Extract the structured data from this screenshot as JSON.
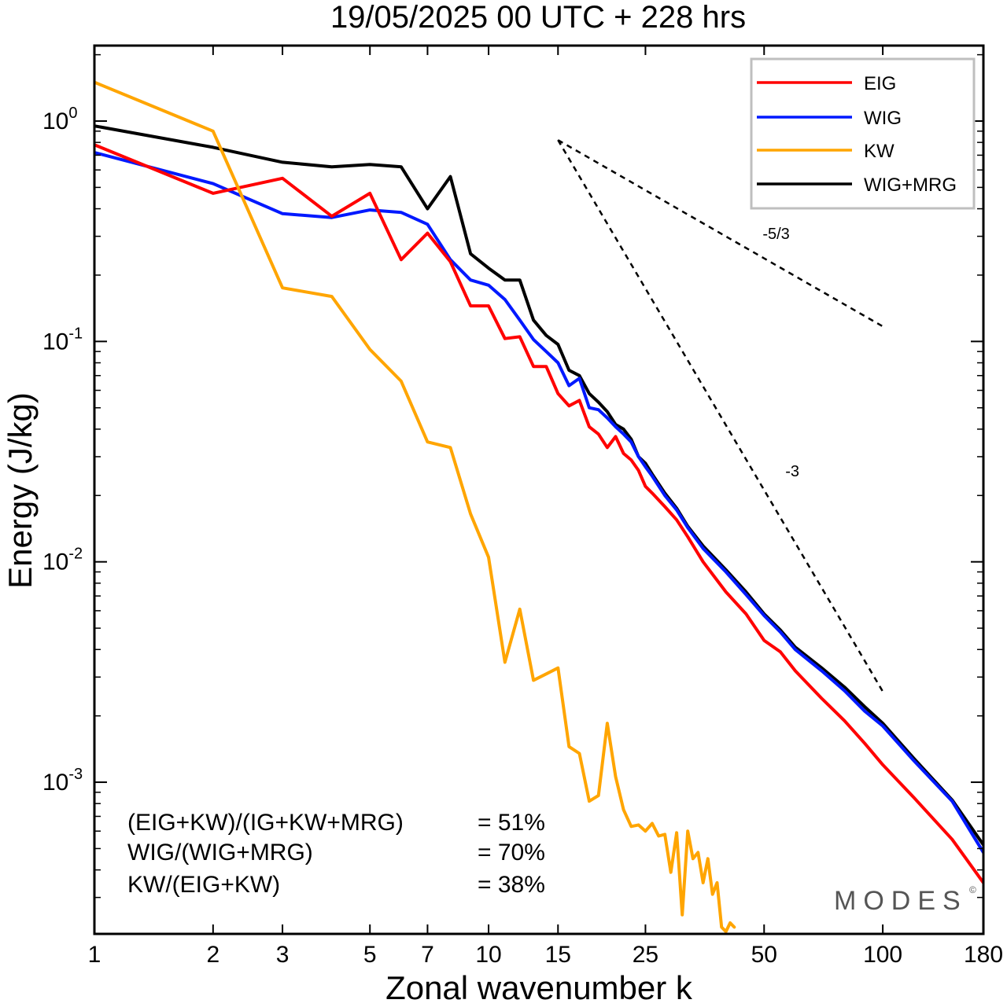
{
  "chart_data": {
    "type": "line",
    "title": "19/05/2025  00 UTC  + 228 hrs",
    "xlabel": "Zonal wavenumber k",
    "ylabel": "Energy (J/kg)",
    "xscale": "log",
    "yscale": "log",
    "xlim": [
      1,
      180
    ],
    "ylim": [
      0.000205,
      2.2
    ],
    "x_ticks": [
      1,
      2,
      3,
      5,
      7,
      10,
      15,
      25,
      50,
      100,
      180
    ],
    "x_tick_labels": [
      "1",
      "2",
      "3",
      "5",
      "7",
      "10",
      "15",
      "25",
      "50",
      "100",
      "180"
    ],
    "y_ticks": [
      {
        "value": 1,
        "base": "10",
        "exp": "0"
      },
      {
        "value": 0.1,
        "base": "10",
        "exp": "-1"
      },
      {
        "value": 0.01,
        "base": "10",
        "exp": "-2"
      },
      {
        "value": 0.001,
        "base": "10",
        "exp": "-3"
      }
    ],
    "grid": false,
    "legend": {
      "position": "top-right",
      "entries": [
        "EIG",
        "WIG",
        "KW",
        "WIG+MRG"
      ]
    },
    "series": [
      {
        "name": "WIG+MRG",
        "color": "#000000",
        "x": [
          1,
          2,
          3,
          4,
          5,
          6,
          7,
          8,
          9,
          10,
          11,
          12,
          13,
          14,
          15,
          16,
          17,
          18,
          19,
          20,
          21,
          22,
          23,
          24,
          25,
          26,
          28,
          30,
          32,
          35,
          40,
          45,
          50,
          55,
          60,
          70,
          80,
          90,
          100,
          120,
          150,
          180
        ],
        "y": [
          0.95,
          0.76,
          0.65,
          0.62,
          0.635,
          0.62,
          0.4,
          0.56,
          0.25,
          0.215,
          0.19,
          0.19,
          0.125,
          0.1065,
          0.097,
          0.074,
          0.07,
          0.058,
          0.053,
          0.048,
          0.042,
          0.04,
          0.036,
          0.03,
          0.028,
          0.025,
          0.0205,
          0.0175,
          0.0145,
          0.0118,
          0.0092,
          0.0073,
          0.0058,
          0.0049,
          0.0041,
          0.0033,
          0.0027,
          0.0022,
          0.00185,
          0.00128,
          0.00083,
          0.00052
        ]
      },
      {
        "name": "WIG",
        "color": "#0019ff",
        "x": [
          1,
          2,
          3,
          4,
          5,
          6,
          7,
          8,
          9,
          10,
          11,
          12,
          13,
          14,
          15,
          16,
          17,
          18,
          19,
          20,
          21,
          22,
          23,
          24,
          25,
          26,
          28,
          30,
          32,
          35,
          40,
          45,
          50,
          55,
          60,
          70,
          80,
          90,
          100,
          120,
          150,
          180
        ],
        "y": [
          0.72,
          0.52,
          0.38,
          0.365,
          0.395,
          0.385,
          0.34,
          0.235,
          0.19,
          0.18,
          0.155,
          0.125,
          0.102,
          0.09,
          0.08,
          0.063,
          0.068,
          0.05,
          0.049,
          0.045,
          0.041,
          0.038,
          0.035,
          0.03,
          0.027,
          0.0245,
          0.02,
          0.0172,
          0.0143,
          0.0115,
          0.009,
          0.0071,
          0.0057,
          0.0048,
          0.004,
          0.0032,
          0.0026,
          0.0021,
          0.0018,
          0.00125,
          0.00082,
          0.00048
        ]
      },
      {
        "name": "EIG",
        "color": "#ff0000",
        "x": [
          1,
          2,
          3,
          4,
          5,
          6,
          7,
          8,
          9,
          10,
          11,
          12,
          13,
          14,
          15,
          16,
          17,
          18,
          19,
          20,
          21,
          22,
          23,
          24,
          25,
          26,
          28,
          30,
          32,
          35,
          40,
          45,
          50,
          55,
          60,
          70,
          80,
          90,
          100,
          120,
          150,
          180
        ],
        "y": [
          0.78,
          0.47,
          0.55,
          0.37,
          0.47,
          0.235,
          0.31,
          0.23,
          0.145,
          0.145,
          0.103,
          0.105,
          0.077,
          0.077,
          0.058,
          0.051,
          0.054,
          0.041,
          0.038,
          0.033,
          0.037,
          0.031,
          0.029,
          0.026,
          0.022,
          0.0205,
          0.0178,
          0.0155,
          0.013,
          0.01,
          0.0073,
          0.0058,
          0.0044,
          0.0039,
          0.0032,
          0.0024,
          0.0019,
          0.0015,
          0.0012,
          0.00085,
          0.00055,
          0.00035
        ]
      },
      {
        "name": "KW",
        "color": "#ffa500",
        "x": [
          1,
          2,
          3,
          4,
          5,
          6,
          7,
          8,
          9,
          10,
          11,
          12,
          13,
          14,
          15,
          16,
          17,
          18,
          19,
          20,
          21,
          22,
          23,
          24,
          25,
          26,
          27,
          28,
          29,
          30,
          31,
          32,
          33,
          34,
          35,
          36,
          37,
          38,
          39,
          40,
          41,
          42
        ],
        "y": [
          1.5,
          0.9,
          0.175,
          0.16,
          0.092,
          0.066,
          0.035,
          0.033,
          0.0165,
          0.0105,
          0.0035,
          0.0061,
          0.0029,
          0.0031,
          0.0033,
          0.00145,
          0.00135,
          0.00082,
          0.00087,
          0.00185,
          0.00106,
          0.00075,
          0.00063,
          0.00064,
          0.0006,
          0.00065,
          0.00057,
          0.00058,
          0.00039,
          0.00059,
          0.00025,
          0.0006,
          0.00045,
          0.00048,
          0.00035,
          0.00045,
          0.00031,
          0.00035,
          0.00022,
          0.00021,
          0.00023,
          0.00022
        ]
      }
    ],
    "reference_lines": [
      {
        "label": "-5/3",
        "slope": -1.6667,
        "x": [
          15,
          100
        ],
        "y": [
          0.82,
          0.117
        ]
      },
      {
        "label": "-3",
        "slope": -3,
        "x": [
          15,
          100
        ],
        "y": [
          0.82,
          0.00258
        ]
      }
    ],
    "annotations": [
      {
        "text": "(EIG+KW)/(IG+KW+MRG)",
        "value": "= 51%"
      },
      {
        "text": "WIG/(WIG+MRG)",
        "value": "= 70%"
      },
      {
        "text": "KW/(EIG+KW)",
        "value": "= 38%"
      }
    ],
    "watermark": "MODES",
    "watermark_mark": "©"
  }
}
